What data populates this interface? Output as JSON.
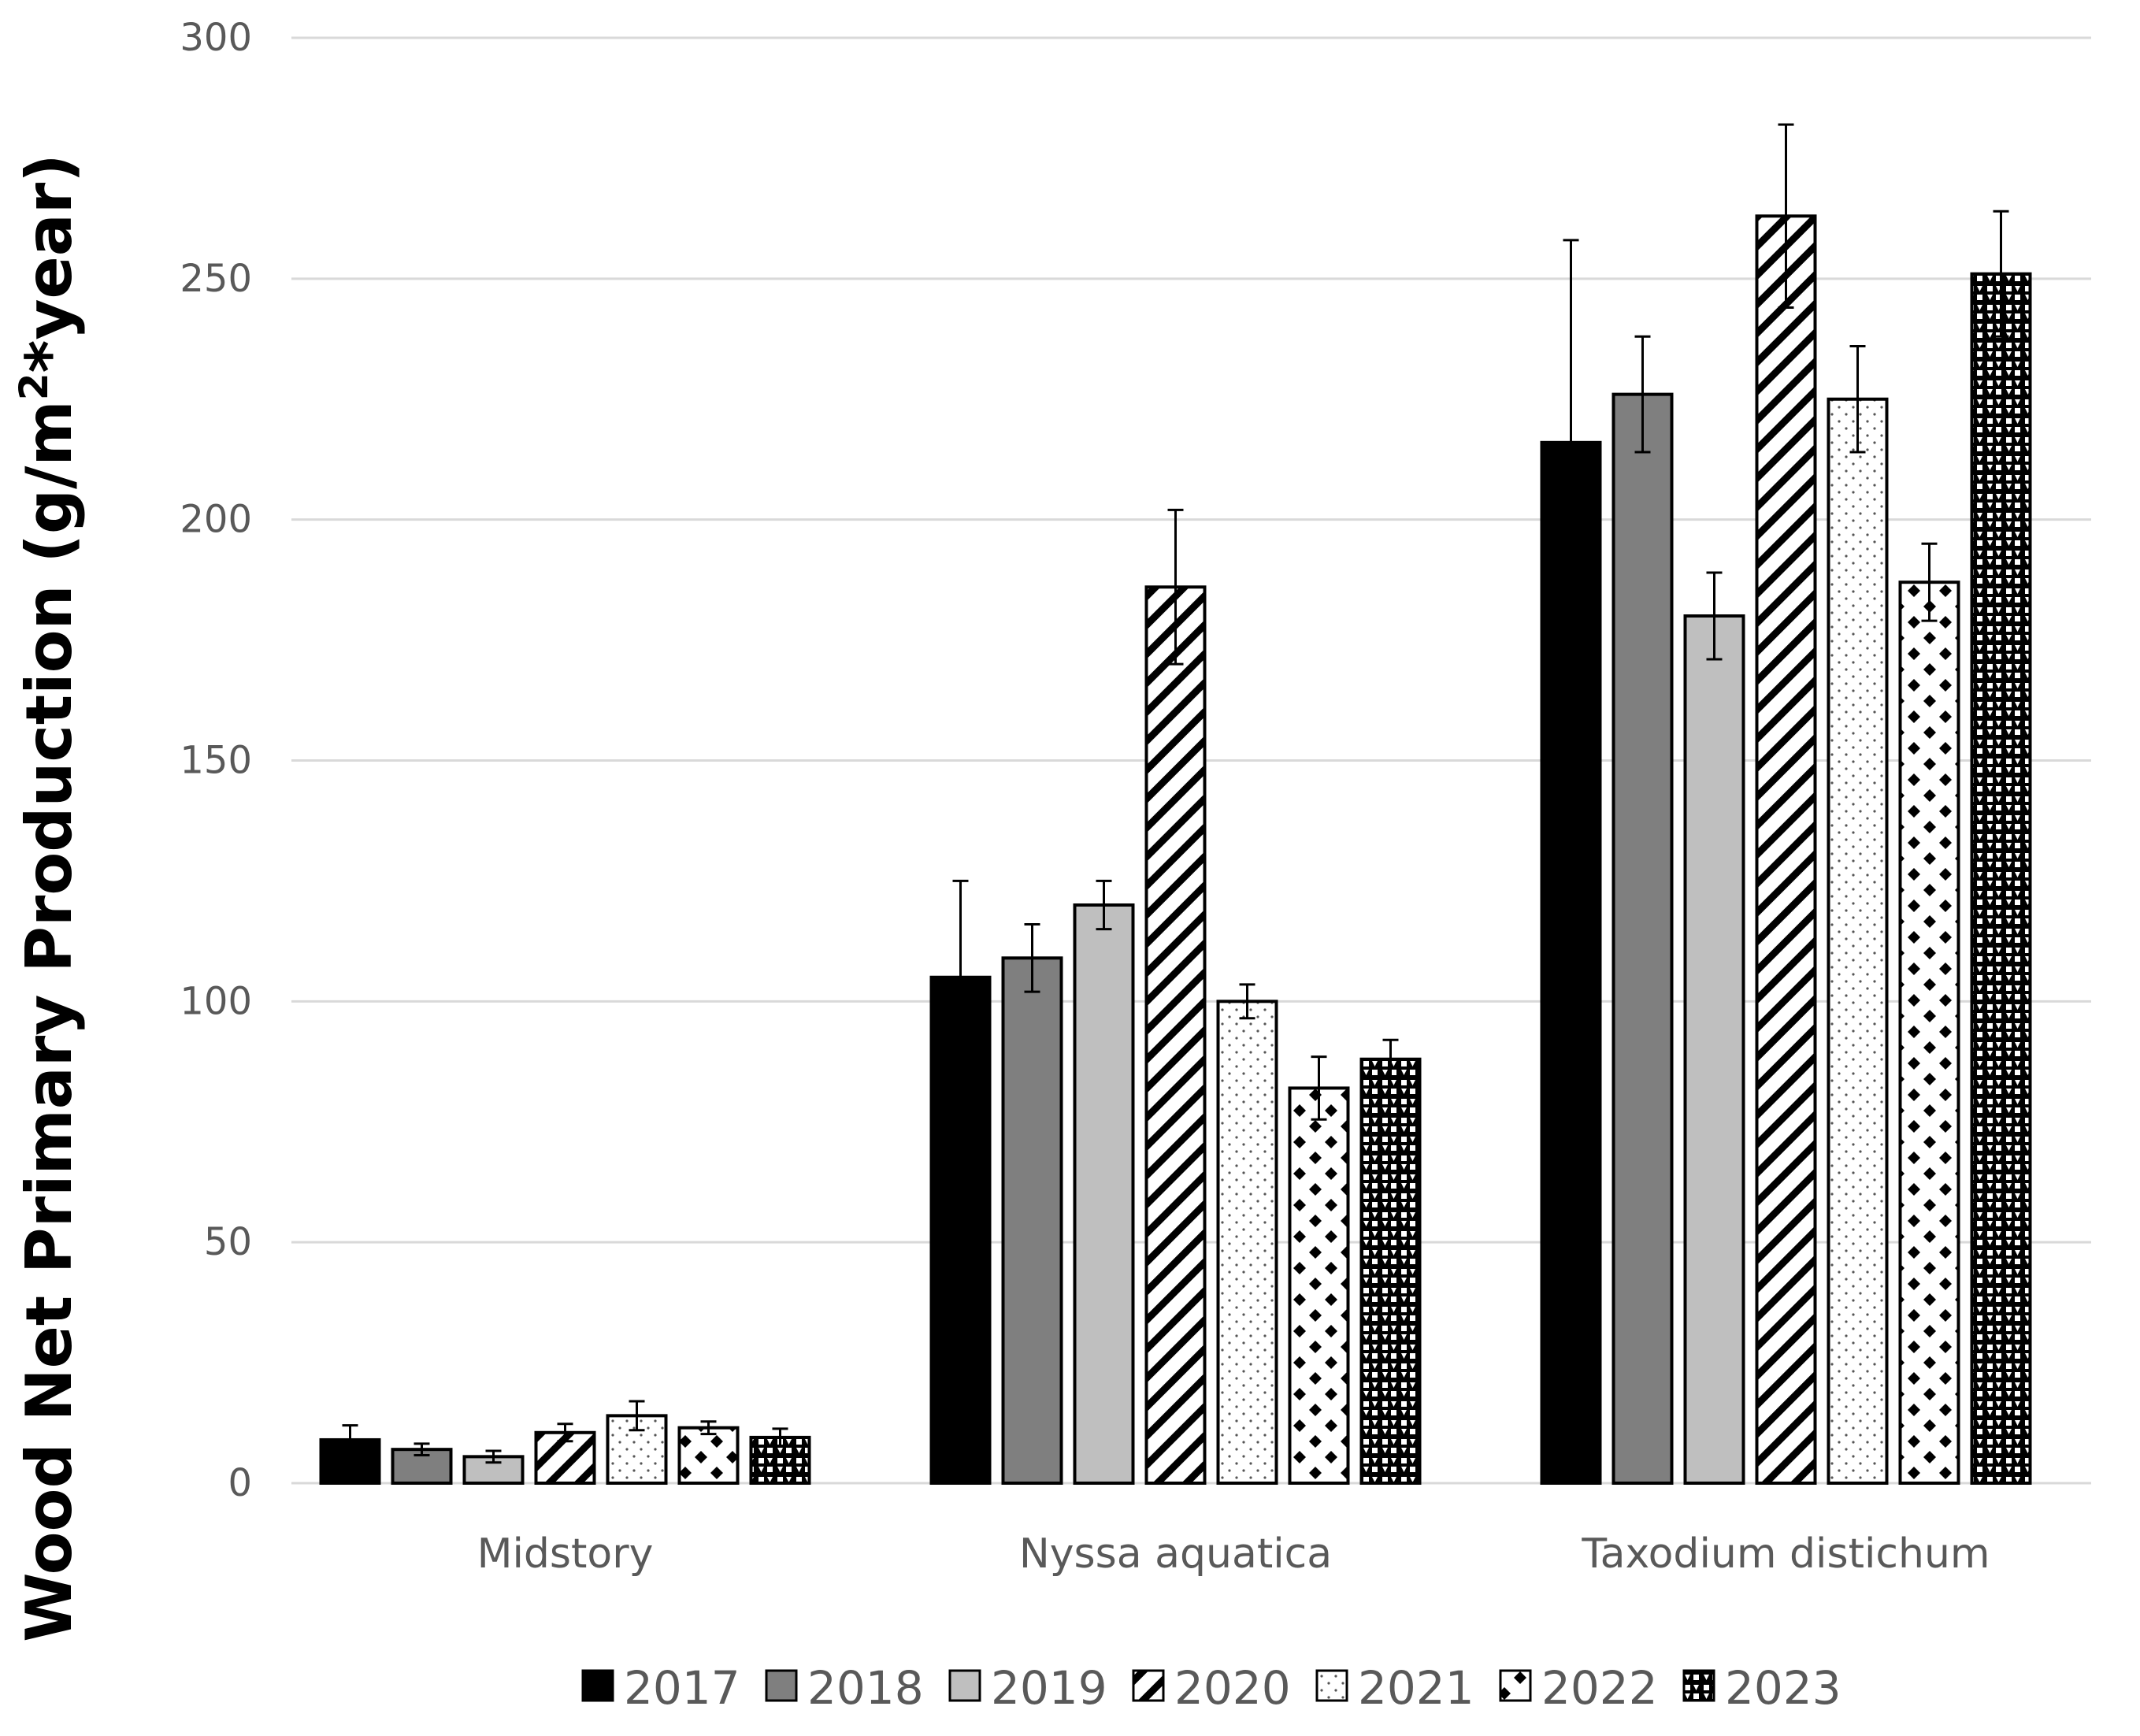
{
  "chart_data": {
    "type": "bar",
    "title": "",
    "xlabel": "",
    "ylabel": "Wood Net Primary Production (g/m",
    "ylabel_superscript": "2",
    "ylabel_suffix": "*year)",
    "ylim": [
      0,
      300
    ],
    "yticks": [
      0,
      50,
      100,
      150,
      200,
      250,
      300
    ],
    "grid": true,
    "legend_position": "bottom",
    "categories": [
      "Midstory",
      "Nyssa aquatica",
      "Taxodium distichum"
    ],
    "series": [
      {
        "name": "2017",
        "pattern": "solid-black",
        "values": [
          9,
          105,
          216
        ],
        "errors": [
          3,
          20,
          42
        ]
      },
      {
        "name": "2018",
        "pattern": "solid-darkgray",
        "values": [
          7,
          109,
          226
        ],
        "errors": [
          1.2,
          7,
          12
        ]
      },
      {
        "name": "2019",
        "pattern": "solid-lightgray",
        "values": [
          5.5,
          120,
          180
        ],
        "errors": [
          1.2,
          5,
          9
        ]
      },
      {
        "name": "2020",
        "pattern": "diagonal",
        "values": [
          10.5,
          186,
          263
        ],
        "errors": [
          1.8,
          16,
          19
        ]
      },
      {
        "name": "2021",
        "pattern": "dots",
        "values": [
          14,
          100,
          225
        ],
        "errors": [
          3,
          3.5,
          11
        ]
      },
      {
        "name": "2022",
        "pattern": "diamonds",
        "values": [
          11.5,
          82,
          187
        ],
        "errors": [
          1.3,
          6.5,
          8
        ]
      },
      {
        "name": "2023",
        "pattern": "checker",
        "values": [
          9.5,
          88,
          251
        ],
        "errors": [
          1.8,
          4,
          13
        ]
      }
    ]
  }
}
